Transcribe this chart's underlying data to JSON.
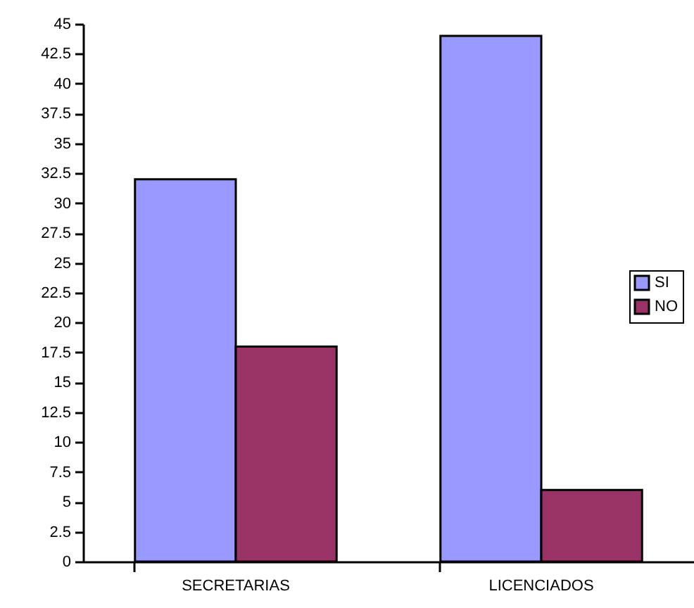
{
  "chart_data": {
    "type": "bar",
    "categories": [
      "SECRETARIAS",
      "LICENCIADOS"
    ],
    "series": [
      {
        "name": "SI",
        "color": "#9999ff",
        "values": [
          32,
          44
        ]
      },
      {
        "name": "NO",
        "color": "#993366",
        "values": [
          18,
          6
        ]
      }
    ],
    "ylim": [
      0,
      45
    ],
    "yticks": [
      0,
      2.5,
      5,
      7.5,
      10,
      12.5,
      15,
      17.5,
      20,
      22.5,
      25,
      27.5,
      30,
      32.5,
      35,
      37.5,
      40,
      42.5,
      45
    ],
    "grid": false,
    "legend": "right"
  }
}
